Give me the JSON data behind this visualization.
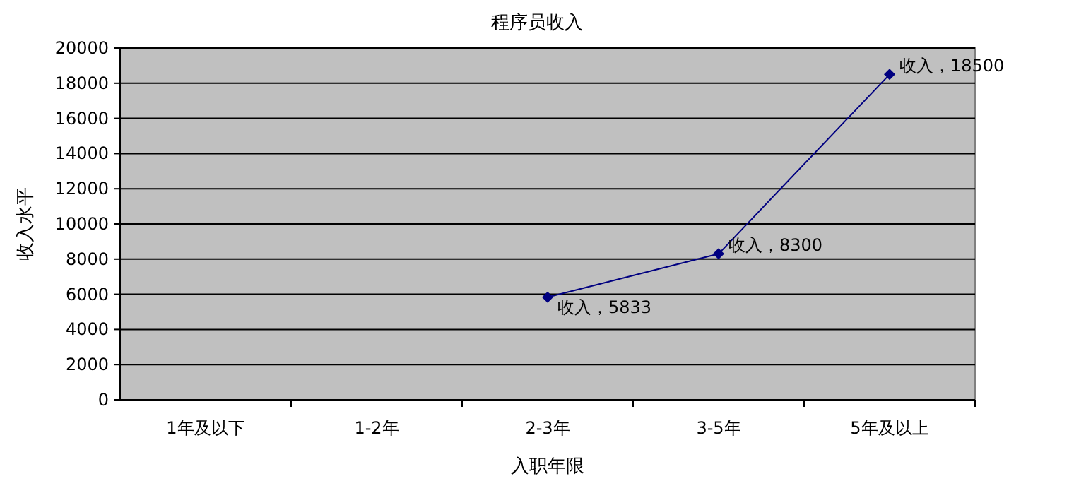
{
  "chart_data": {
    "type": "line",
    "title": "程序员收入",
    "xlabel": "入职年限",
    "ylabel": "收入水平",
    "categories": [
      "1年及以下",
      "1-2年",
      "2-3年",
      "3-5年",
      "5年及以上"
    ],
    "series": [
      {
        "color": "#000080",
        "values": [
          null,
          null,
          5833,
          8300,
          18500
        ],
        "value_labels": [
          null,
          null,
          "收入，5833",
          "收入，8300",
          "收入，18500"
        ]
      }
    ],
    "ylim": [
      0,
      20000
    ],
    "yticks": [
      0,
      2000,
      4000,
      6000,
      8000,
      10000,
      12000,
      14000,
      16000,
      18000,
      20000
    ],
    "grid": "y",
    "marker": "diamond",
    "line_style": "solid"
  }
}
